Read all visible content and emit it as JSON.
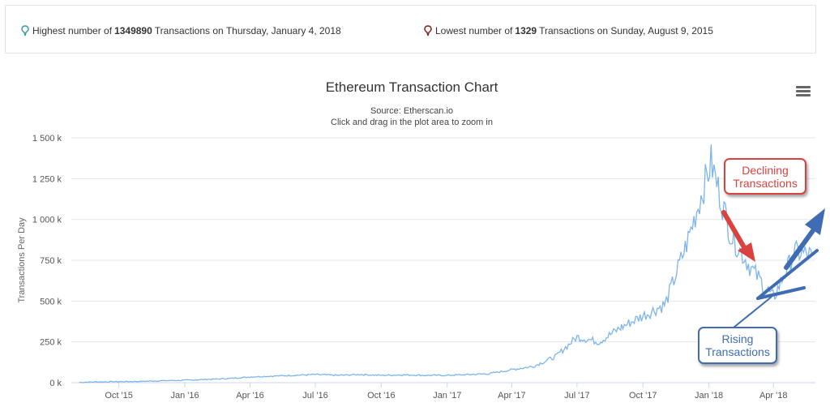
{
  "stats": {
    "high": {
      "prefix": "Highest number of",
      "value": "1349890",
      "suffix": "Transactions on Thursday, January 4, 2018",
      "pin_color": "#3a9e9e"
    },
    "low": {
      "prefix": "Lowest number of",
      "value": "1329",
      "suffix": "Transactions on Sunday, August 9, 2015",
      "pin_color": "#8b2020"
    }
  },
  "menu": {
    "icon": "hamburger-menu-icon"
  },
  "annotations": {
    "declining": {
      "text": "Declining\nTransactions",
      "color": "#d9423f"
    },
    "rising": {
      "text": "Rising\nTransactions",
      "color": "#3f6cb3"
    }
  },
  "chart_data": {
    "type": "line",
    "title": "Ethereum Transaction Chart",
    "subtitle": "Source: Etherscan.io",
    "subtitle2": "Click and drag in the plot area to zoom in",
    "ylabel": "Transactions Per Day",
    "xlabel": "",
    "ylim": [
      0,
      1500000
    ],
    "yticks": [
      0,
      250000,
      500000,
      750000,
      1000000,
      1250000,
      1500000
    ],
    "ytick_labels": [
      "0 k",
      "250 k",
      "500 k",
      "750 k",
      "1 000 k",
      "1 250 k",
      "1 500 k"
    ],
    "xtick_labels": [
      "Oct '15",
      "Jan '16",
      "Apr '16",
      "Jul '16",
      "Oct '16",
      "Jan '17",
      "Apr '17",
      "Jul '17",
      "Oct '17",
      "Jan '18",
      "Apr '18"
    ],
    "xtick_dates": [
      "2015-10-01",
      "2016-01-01",
      "2016-04-01",
      "2016-07-01",
      "2016-10-01",
      "2017-01-01",
      "2017-04-01",
      "2017-07-01",
      "2017-10-01",
      "2018-01-01",
      "2018-04-01"
    ],
    "grid": true,
    "line_color": "#7cb5ec",
    "series": [
      {
        "x": [
          "2015-08-07",
          "2015-09-01",
          "2015-10-01",
          "2015-11-01",
          "2015-12-01",
          "2016-01-01",
          "2016-02-01",
          "2016-03-01",
          "2016-04-01",
          "2016-05-01",
          "2016-06-01",
          "2016-07-01",
          "2016-08-01",
          "2016-09-01",
          "2016-10-01",
          "2016-11-01",
          "2016-12-01",
          "2017-01-01",
          "2017-02-01",
          "2017-03-01",
          "2017-04-01",
          "2017-05-01",
          "2017-06-01",
          "2017-07-01",
          "2017-08-01",
          "2017-09-01",
          "2017-10-01",
          "2017-11-01",
          "2017-12-01",
          "2018-01-04",
          "2018-02-01",
          "2018-03-01",
          "2018-04-01",
          "2018-05-01",
          "2018-05-25"
        ],
        "y": [
          2000,
          5000,
          6000,
          8000,
          12000,
          15000,
          20000,
          25000,
          35000,
          40000,
          45000,
          50000,
          45000,
          50000,
          45000,
          48000,
          45000,
          45000,
          50000,
          55000,
          80000,
          100000,
          160000,
          280000,
          250000,
          340000,
          410000,
          480000,
          850000,
          1349890,
          900000,
          700000,
          520000,
          800000,
          780000
        ]
      }
    ]
  }
}
